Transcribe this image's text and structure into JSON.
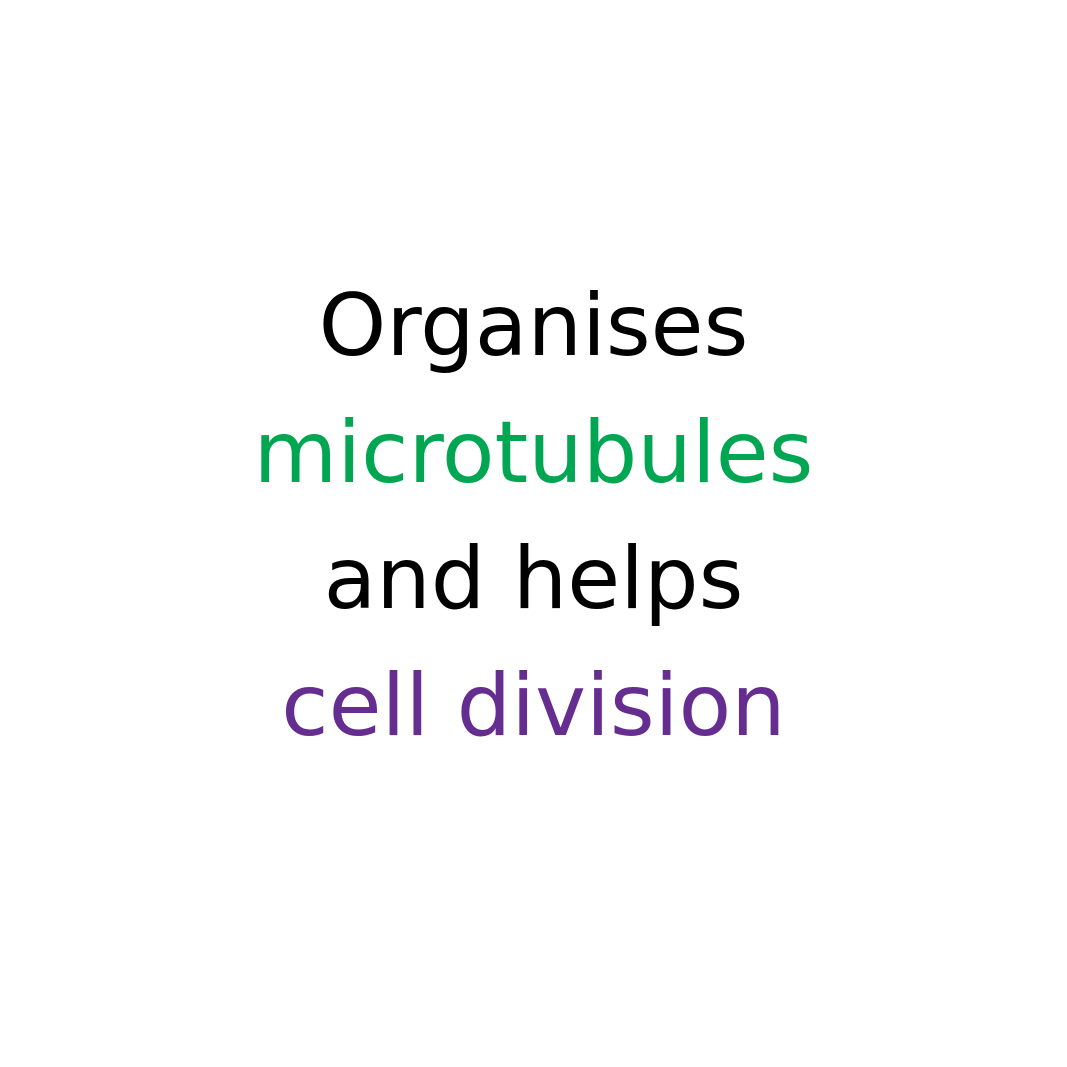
{
  "lines": [
    {
      "text": "Organises",
      "color": "#000000"
    },
    {
      "text": "microtubules",
      "color": "#00a651"
    },
    {
      "text": "and helps",
      "color": "#000000"
    },
    {
      "text": "cell division",
      "color": "#662d91"
    }
  ]
}
